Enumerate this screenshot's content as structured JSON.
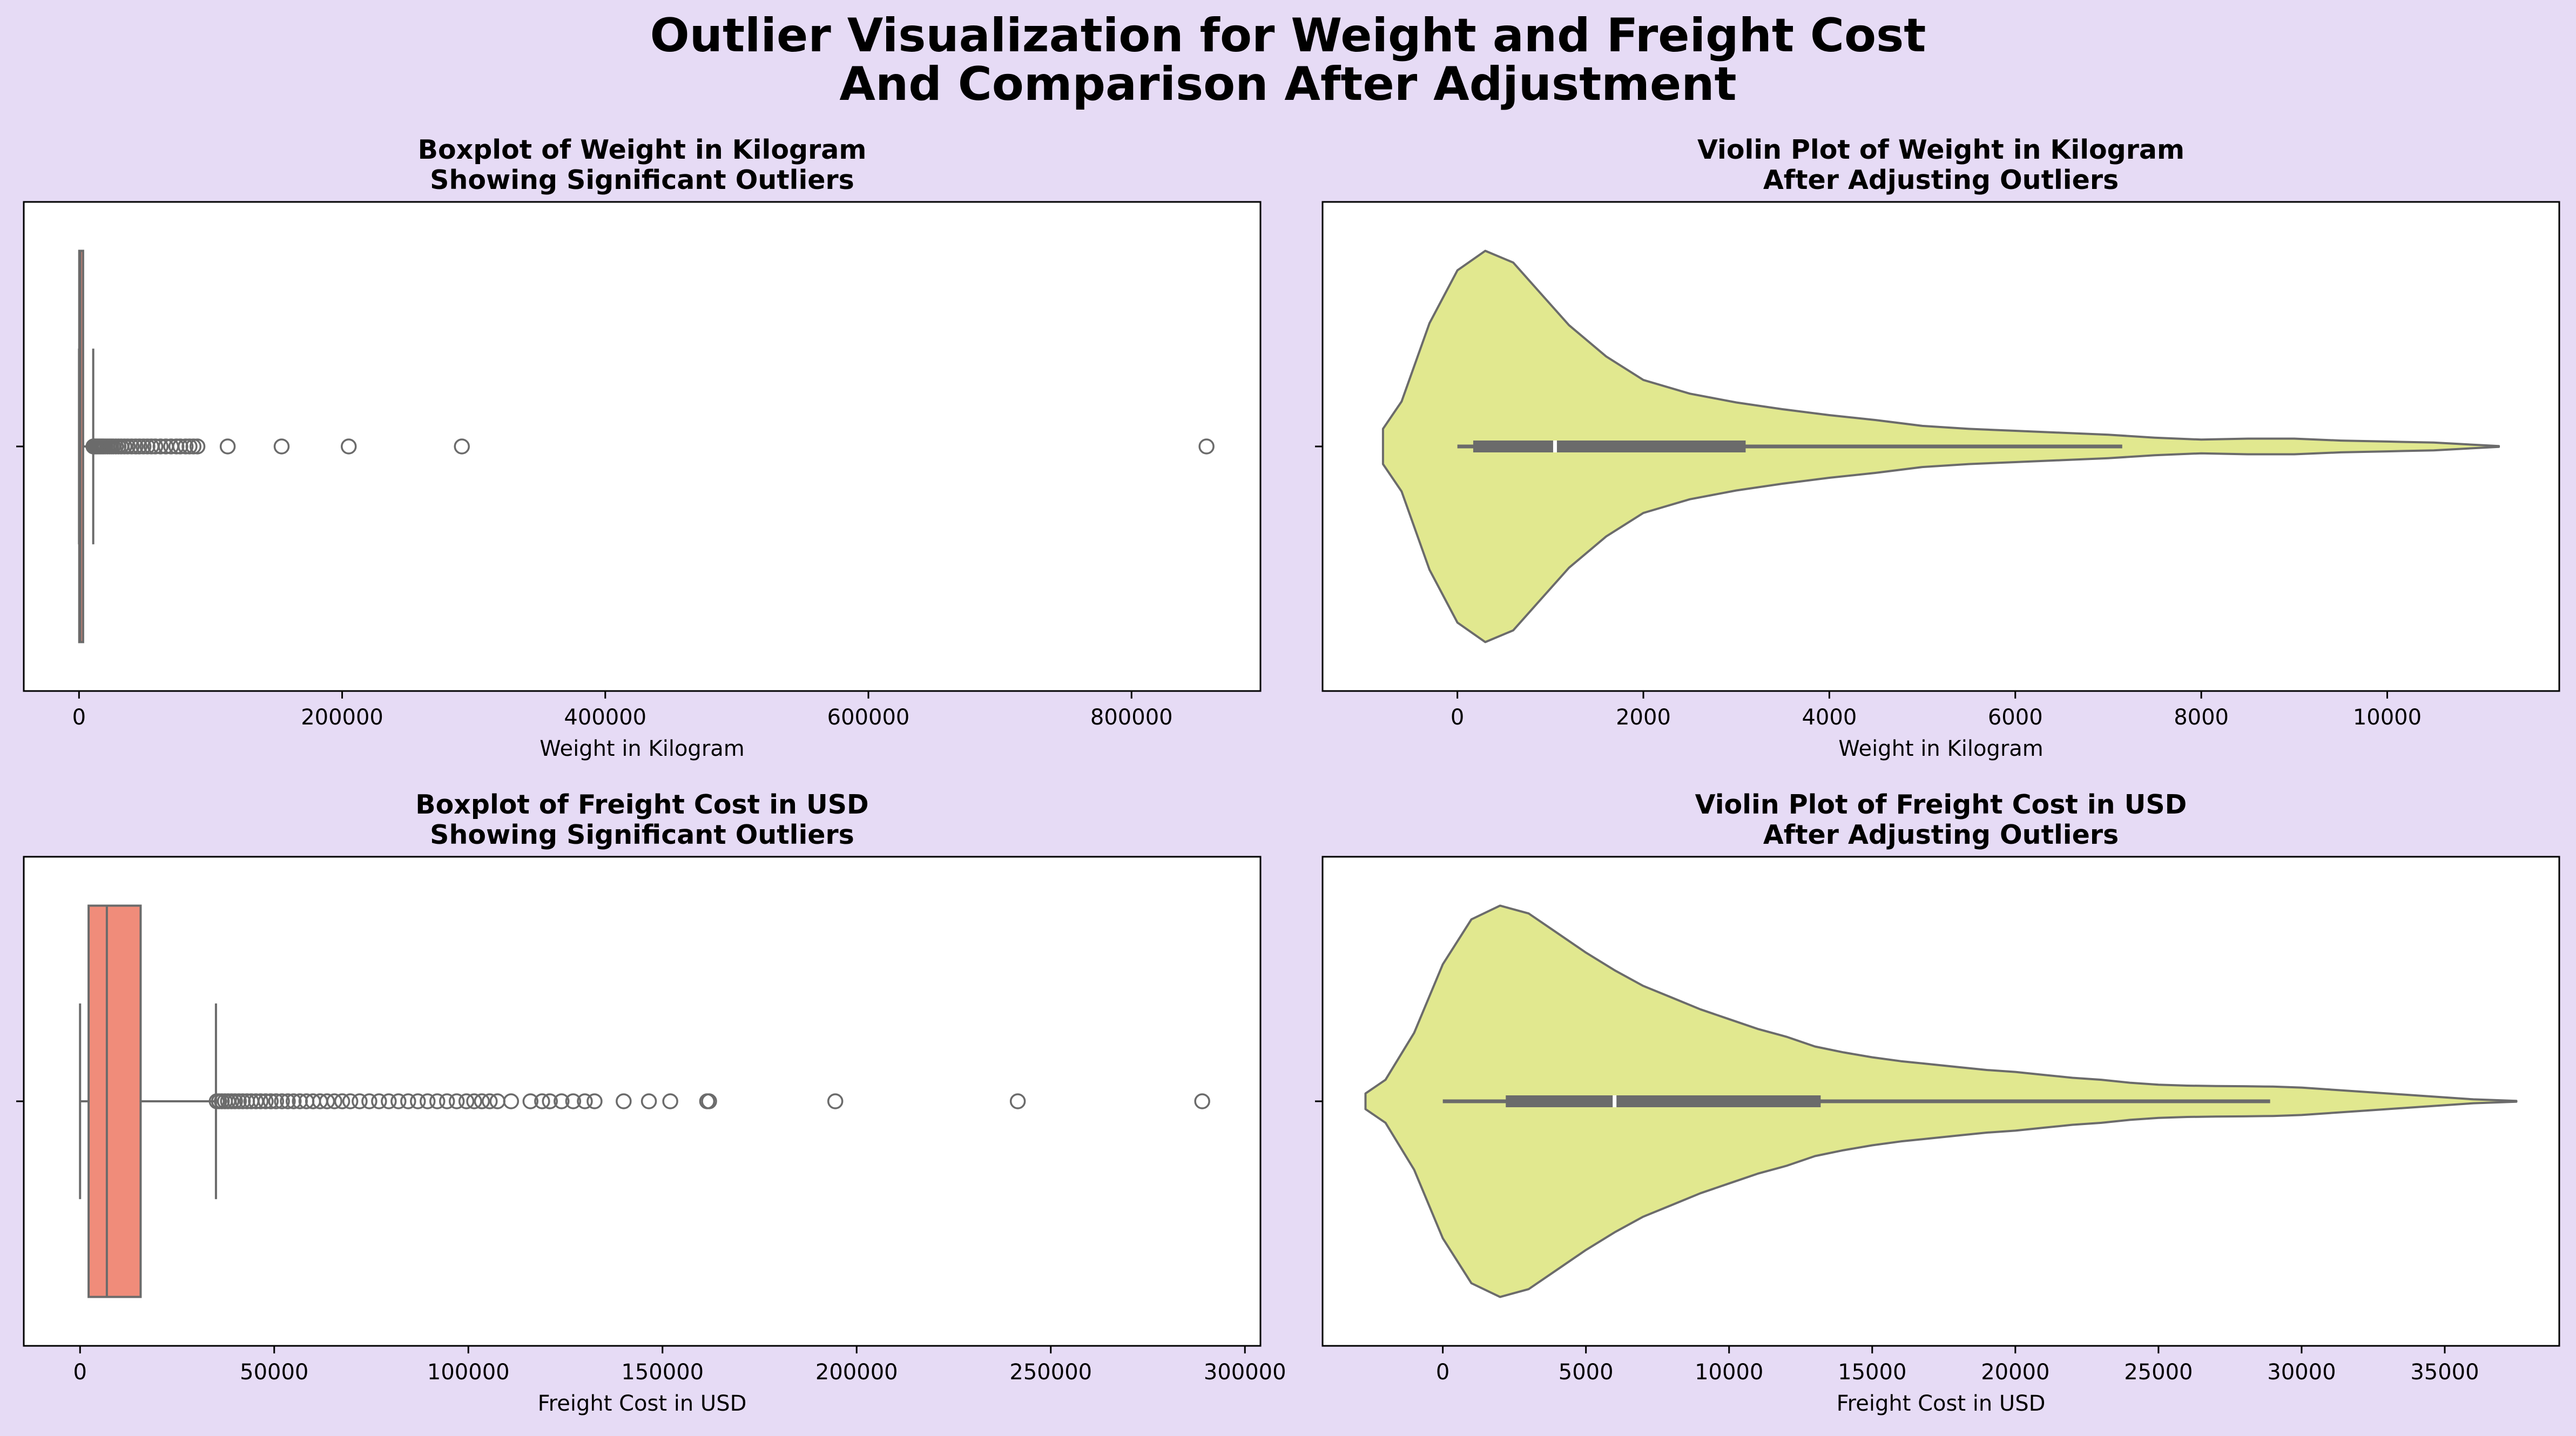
{
  "figure": {
    "title_line1": "Outlier Visualization for Weight and Freight Cost",
    "title_line2": "And Comparison After Adjustment",
    "background": "#e6dbf5"
  },
  "chart_data": [
    {
      "type": "box",
      "title_line1": "Boxplot of Weight in Kilogram",
      "title_line2": "Showing Significant Outliers",
      "xlabel": "Weight in Kilogram",
      "xlim": [
        -42000,
        898000
      ],
      "xticks": [
        0,
        200000,
        400000,
        600000,
        800000
      ],
      "xtick_labels": [
        "0",
        "200000",
        "400000",
        "600000",
        "800000"
      ],
      "grid": false,
      "color": "#f08c7a",
      "box": {
        "whisker_low": 0,
        "q1": 170,
        "median": 1050,
        "q3": 3100,
        "whisker_high": 10800
      },
      "outliers": [
        11000,
        11800,
        12600,
        13500,
        14500,
        15500,
        16500,
        17600,
        18700,
        20000,
        21500,
        23000,
        24500,
        26000,
        28000,
        30000,
        32000,
        34500,
        37000,
        40000,
        43000,
        46000,
        49000,
        52000,
        55000,
        58000,
        62000,
        66000,
        70000,
        74000,
        77000,
        81000,
        84000,
        87000,
        90000,
        113000,
        154000,
        205000,
        291000,
        857000
      ]
    },
    {
      "type": "violin",
      "title_line1": "Violin Plot of Weight in Kilogram",
      "title_line2": "After Adjusting Outliers",
      "xlabel": "Weight in Kilogram",
      "xlim": [
        -1450,
        11850
      ],
      "xticks": [
        0,
        2000,
        4000,
        6000,
        8000,
        10000
      ],
      "xtick_labels": [
        "0",
        "2000",
        "4000",
        "6000",
        "8000",
        "10000"
      ],
      "grid": false,
      "color": "#e1e88f",
      "quartiles": {
        "min": 0,
        "q1": 170,
        "median": 1050,
        "q3": 3100,
        "max": 7150
      },
      "density_x": [
        -800,
        -600,
        -300,
        0,
        300,
        600,
        900,
        1200,
        1600,
        2000,
        2500,
        3000,
        3500,
        4000,
        4500,
        5000,
        5500,
        6000,
        6500,
        7000,
        7500,
        8000,
        8500,
        9000,
        9500,
        10000,
        10500,
        11200
      ],
      "density_w": [
        0.09,
        0.23,
        0.63,
        0.9,
        1.0,
        0.94,
        0.78,
        0.62,
        0.46,
        0.34,
        0.27,
        0.225,
        0.19,
        0.16,
        0.135,
        0.105,
        0.09,
        0.08,
        0.07,
        0.06,
        0.045,
        0.035,
        0.04,
        0.04,
        0.03,
        0.025,
        0.02,
        0.002
      ]
    },
    {
      "type": "box",
      "title_line1": "Boxplot of Freight Cost in USD",
      "title_line2": "Showing Significant Outliers",
      "xlabel": "Freight Cost in USD",
      "xlim": [
        -14500,
        304000
      ],
      "xticks": [
        0,
        50000,
        100000,
        150000,
        200000,
        250000,
        300000
      ],
      "xtick_labels": [
        "0",
        "50000",
        "100000",
        "150000",
        "200000",
        "250000",
        "300000"
      ],
      "grid": false,
      "color": "#f08c7a",
      "box": {
        "whisker_low": 0,
        "q1": 2200,
        "median": 6900,
        "q3": 15600,
        "whisker_high": 35000
      },
      "outliers": [
        35200,
        35800,
        36500,
        37300,
        38100,
        39000,
        39900,
        40900,
        41900,
        43000,
        44100,
        45300,
        46500,
        47800,
        49100,
        50500,
        52000,
        53500,
        55000,
        56600,
        58300,
        60000,
        61800,
        63600,
        65500,
        67500,
        69600,
        72000,
        74500,
        77000,
        79500,
        82000,
        84500,
        87000,
        89500,
        92000,
        94500,
        97000,
        99500,
        101500,
        103500,
        105500,
        107500,
        111000,
        116000,
        119000,
        121000,
        124000,
        127000,
        130000,
        132500,
        140000,
        146500,
        152000,
        161500,
        162000,
        194500,
        241500,
        289000
      ]
    },
    {
      "type": "violin",
      "title_line1": "Violin Plot of Freight Cost in USD",
      "title_line2": "After Adjusting Outliers",
      "xlabel": "Freight Cost in USD",
      "xlim": [
        -4200,
        39000
      ],
      "xticks": [
        0,
        5000,
        10000,
        15000,
        20000,
        25000,
        30000,
        35000
      ],
      "xtick_labels": [
        "0",
        "5000",
        "10000",
        "15000",
        "20000",
        "25000",
        "30000",
        "35000"
      ],
      "grid": false,
      "color": "#e1e88f",
      "quartiles": {
        "min": 0,
        "q1": 2200,
        "median": 6000,
        "q3": 13200,
        "max": 28900
      },
      "density_x": [
        -2700,
        -2000,
        -1000,
        0,
        1000,
        2000,
        3000,
        4000,
        5000,
        6000,
        7000,
        8000,
        9000,
        10000,
        11000,
        12000,
        13000,
        14000,
        15000,
        16000,
        17000,
        18000,
        19000,
        20000,
        21000,
        22000,
        23000,
        24000,
        25000,
        26000,
        27000,
        28000,
        29000,
        30000,
        31000,
        32000,
        33000,
        34000,
        35000,
        36000,
        37500
      ],
      "density_w": [
        0.04,
        0.11,
        0.35,
        0.7,
        0.93,
        1.0,
        0.96,
        0.86,
        0.76,
        0.67,
        0.59,
        0.53,
        0.47,
        0.42,
        0.37,
        0.33,
        0.28,
        0.25,
        0.225,
        0.205,
        0.19,
        0.175,
        0.16,
        0.15,
        0.135,
        0.12,
        0.11,
        0.095,
        0.085,
        0.08,
        0.078,
        0.077,
        0.075,
        0.07,
        0.06,
        0.05,
        0.04,
        0.03,
        0.02,
        0.01,
        0.002
      ]
    }
  ]
}
